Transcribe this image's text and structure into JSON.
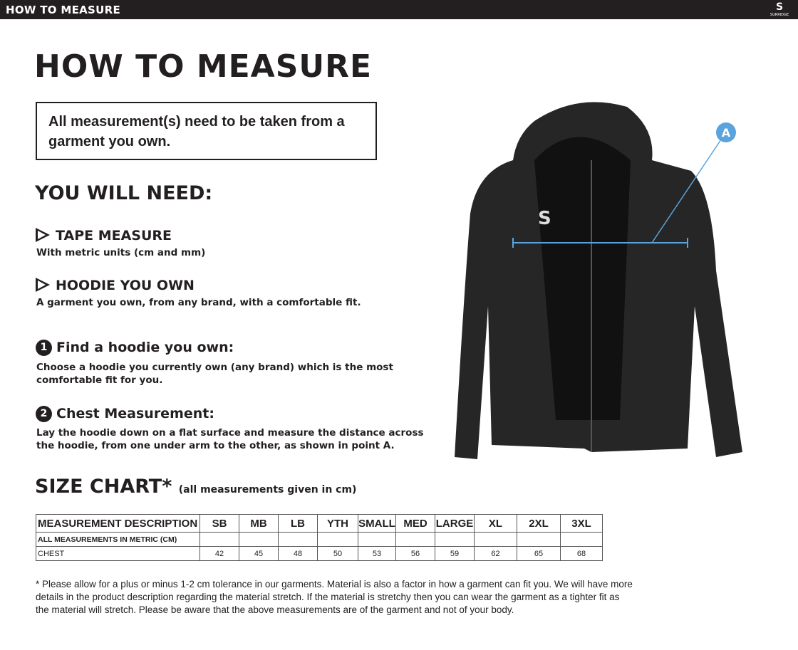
{
  "topbar": {
    "title": "HOW TO MEASURE",
    "logo_text": "SURRIDGE"
  },
  "title": "HOW TO MEASURE",
  "note": "All measurement(s) need to be taken from a garment you own.",
  "need_heading": "YOU WILL NEED:",
  "needs": [
    {
      "title": "TAPE MEASURE",
      "desc": "With metric units (cm and mm)"
    },
    {
      "title": "HOODIE YOU OWN",
      "desc": "A garment you own, from any brand, with a comfortable fit."
    }
  ],
  "steps": [
    {
      "num": "1",
      "title": "Find a hoodie you own:",
      "desc": "Choose a hoodie you currently own (any brand) which is the most comfortable fit for you."
    },
    {
      "num": "2",
      "title": "Chest Measurement:",
      "desc": "Lay the hoodie down on a flat surface and measure the distance across the hoodie, from one under arm to the other, as shown in point A."
    }
  ],
  "diagram": {
    "point_label": "A",
    "accent": "#5ba3dc"
  },
  "size_chart": {
    "heading": "SIZE CHART*",
    "note": "(all measurements given in cm)",
    "header": [
      "MEASUREMENT DESCRIPTION",
      "SB",
      "MB",
      "LB",
      "YTH",
      "SMALL",
      "MED",
      "LARGE",
      "XL",
      "2XL",
      "3XL"
    ],
    "subheader": "ALL MEASUREMENTS IN METRIC (CM)",
    "rows": [
      {
        "label": "CHEST",
        "values": [
          "42",
          "45",
          "48",
          "50",
          "53",
          "56",
          "59",
          "62",
          "65",
          "68"
        ]
      }
    ]
  },
  "footnote": "* Please allow for a plus or minus 1-2 cm tolerance in our garments. Material is also a factor in how a garment can fit you. We will have more details in the product description regarding the material stretch.  If the material is stretchy then you can wear the garment as a tighter fit as the material will stretch.  Please be aware that the above measurements are of the garment and not of your body."
}
